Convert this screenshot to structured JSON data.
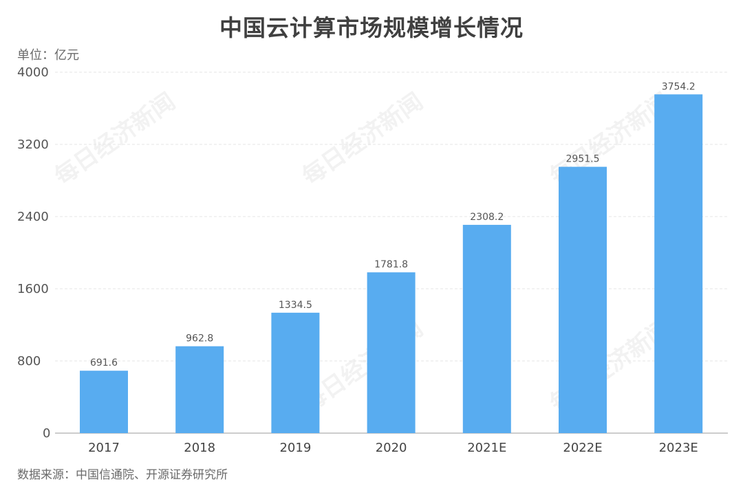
{
  "chart_data": {
    "type": "bar",
    "title": "中国云计算市场规模增长情况",
    "unit_label": "单位：亿元",
    "source": "数据来源：中国信通院、开源证券研究所",
    "categories": [
      "2017",
      "2018",
      "2019",
      "2020",
      "2021E",
      "2022E",
      "2023E"
    ],
    "values": [
      691.6,
      962.8,
      1334.5,
      1781.8,
      2308.2,
      2951.5,
      3754.2
    ],
    "value_labels": [
      "691.6",
      "962.8",
      "1334.5",
      "1781.8",
      "2308.2",
      "2951.5",
      "3754.2"
    ],
    "yticks": [
      "0",
      "800",
      "1600",
      "2400",
      "3200",
      "4000"
    ],
    "ylim": [
      0,
      4000
    ],
    "xlabel": "",
    "ylabel": "",
    "grid": true,
    "legend": "none",
    "bar_color": "#58acf0",
    "watermark": "每日经济新闻"
  }
}
